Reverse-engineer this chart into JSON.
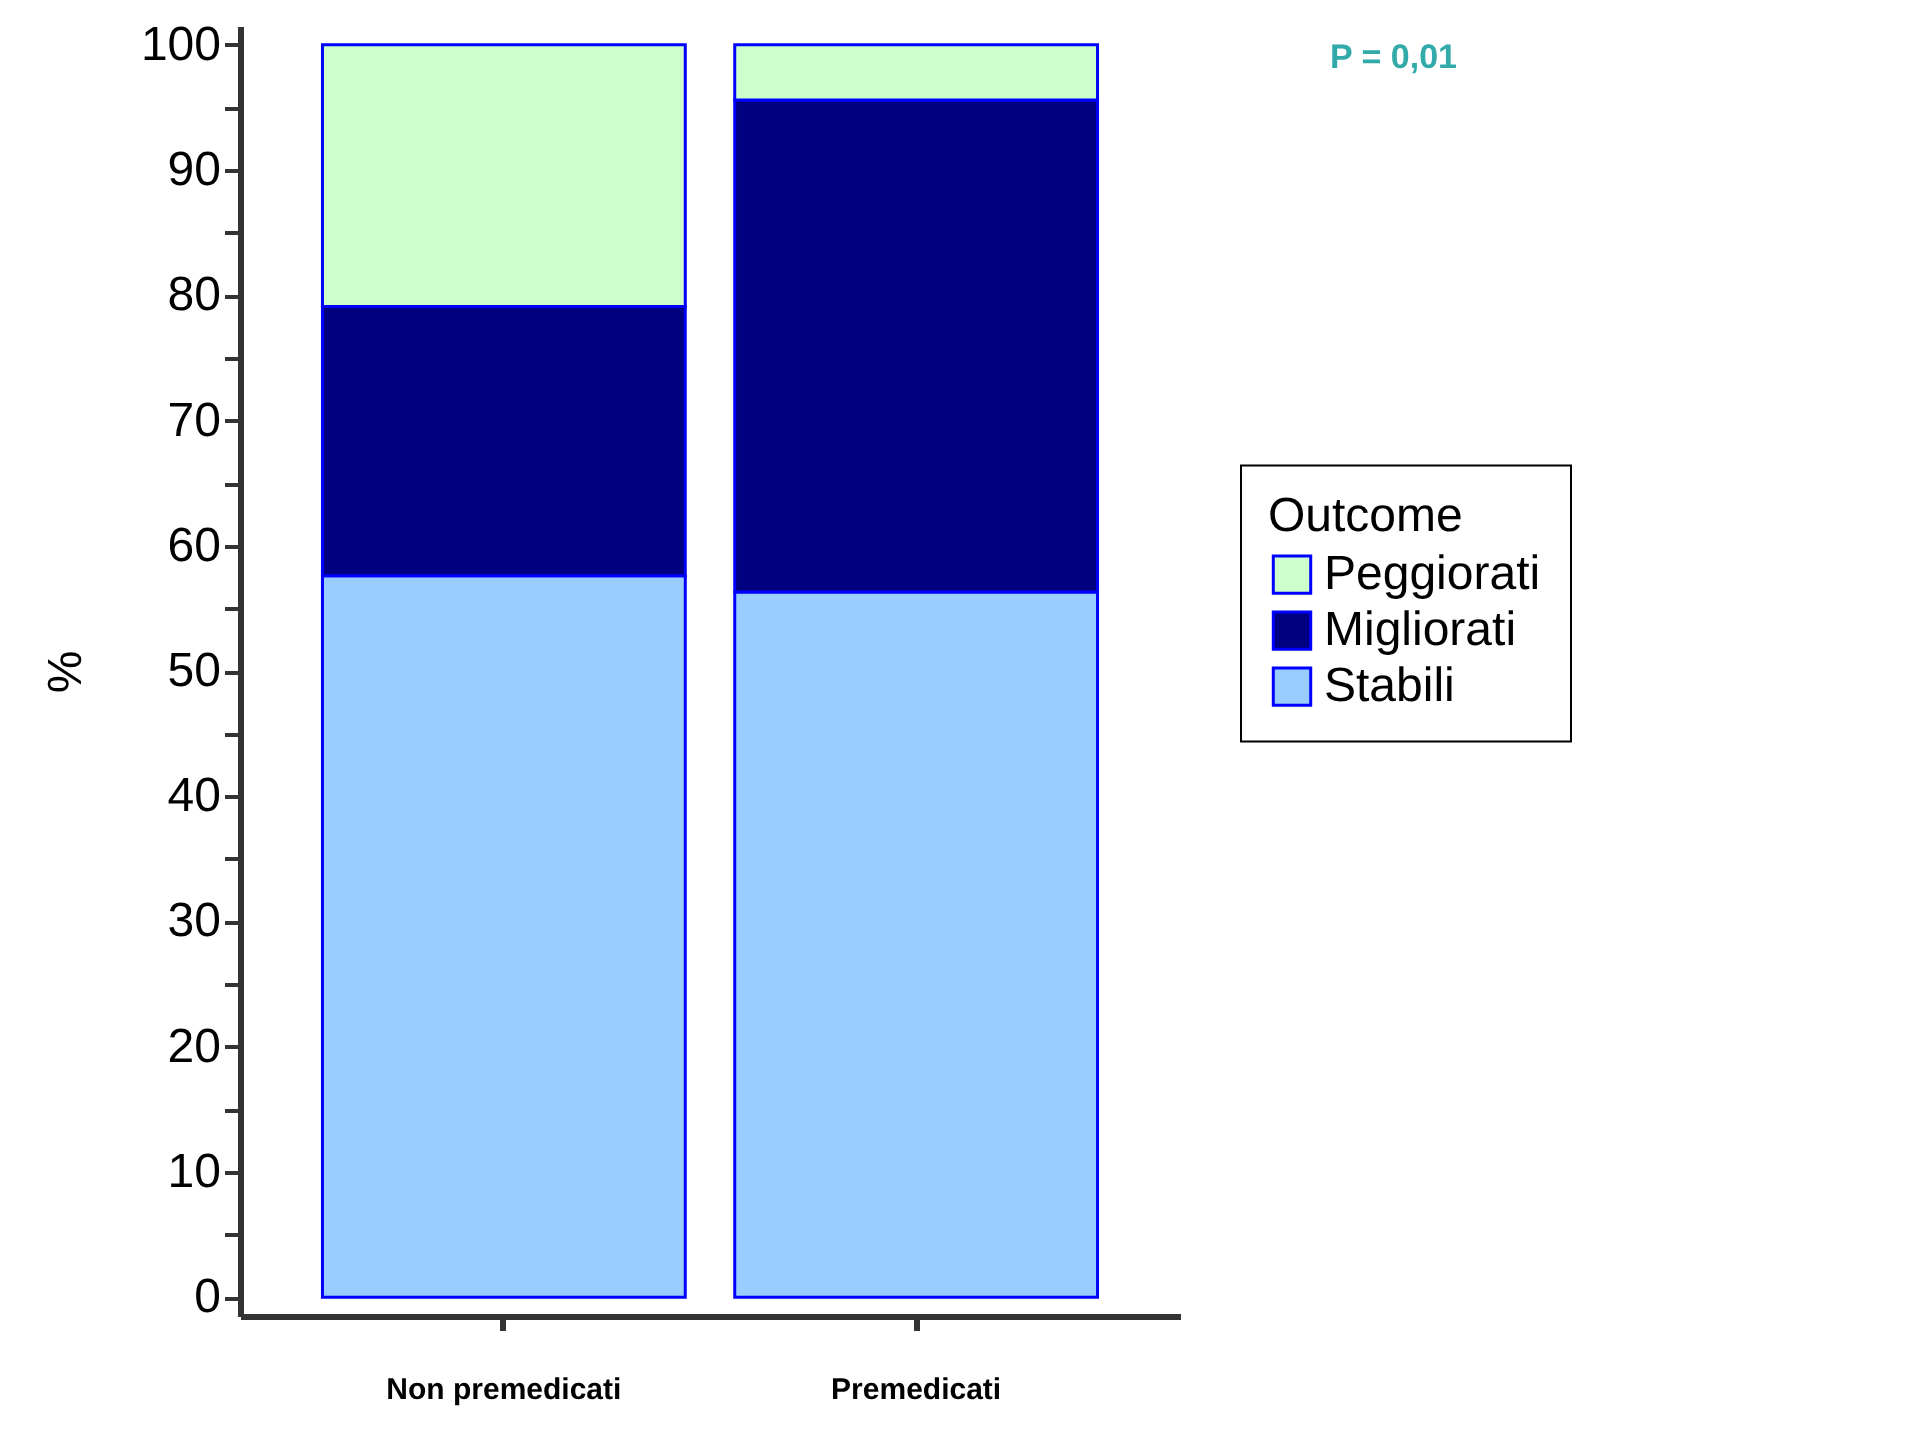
{
  "chart_data": {
    "type": "bar",
    "stacked": true,
    "ylabel": "%",
    "legend_title": "Outcome",
    "legend": "right",
    "categories": [
      "Non premedicati",
      "Premedicati"
    ],
    "series": [
      {
        "name": "Stabili",
        "color": "#99ccff",
        "values": [
          57.6,
          56.3
        ]
      },
      {
        "name": "Migliorati",
        "color": "#000080",
        "values": [
          21.5,
          39.3
        ]
      },
      {
        "name": "Peggiorati",
        "color": "#ccffcc",
        "values": [
          20.9,
          4.4
        ]
      }
    ],
    "ylim": [
      -1.5,
      101.5
    ],
    "yticks": [
      0,
      {
        "value": 5,
        "label": null
      },
      10,
      {
        "value": 15,
        "label": null
      },
      20,
      {
        "value": 25,
        "label": null
      },
      30,
      {
        "value": 35,
        "label": null
      },
      40,
      {
        "value": 45,
        "label": null
      },
      50,
      {
        "value": 55,
        "label": null
      },
      60,
      {
        "value": 65,
        "label": null
      },
      70,
      {
        "value": 75,
        "label": null
      },
      80,
      {
        "value": 85,
        "label": null
      },
      90,
      {
        "value": 95,
        "label": null
      },
      100
    ],
    "grid": false,
    "annotations": [
      "P = 0,01"
    ]
  }
}
